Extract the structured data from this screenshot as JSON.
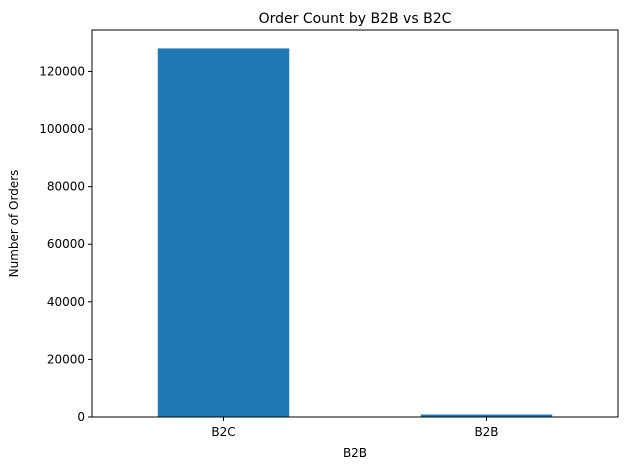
{
  "chart_data": {
    "type": "bar",
    "title": "Order Count by B2B vs B2C",
    "xlabel": "B2B",
    "ylabel": "Number of Orders",
    "categories": [
      "B2C",
      "B2B"
    ],
    "values": [
      128000,
      870
    ],
    "ylim": [
      0,
      134400
    ],
    "yticks": [
      0,
      20000,
      40000,
      60000,
      80000,
      100000,
      120000
    ],
    "grid": false,
    "legend": "none",
    "bar_color": "#1f77b4"
  }
}
